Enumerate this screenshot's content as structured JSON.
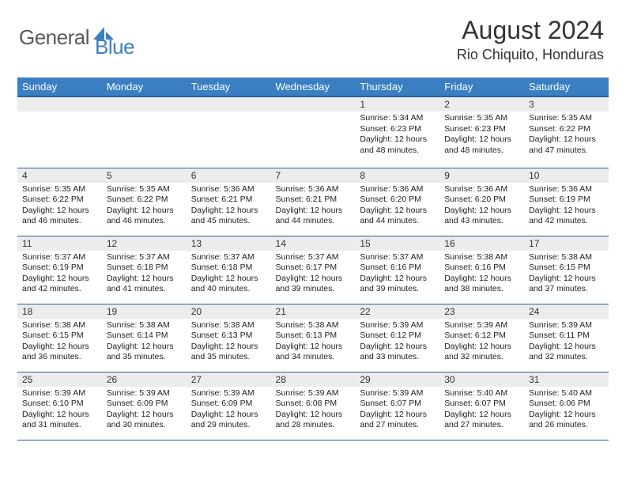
{
  "brand": {
    "general": "General",
    "blue": "Blue"
  },
  "title": "August 2024",
  "location": "Rio Chiquito, Honduras",
  "headers": [
    "Sunday",
    "Monday",
    "Tuesday",
    "Wednesday",
    "Thursday",
    "Friday",
    "Saturday"
  ],
  "days": {
    "1": {
      "sunrise": "5:34 AM",
      "sunset": "6:23 PM",
      "daylight": "12 hours and 48 minutes."
    },
    "2": {
      "sunrise": "5:35 AM",
      "sunset": "6:23 PM",
      "daylight": "12 hours and 48 minutes."
    },
    "3": {
      "sunrise": "5:35 AM",
      "sunset": "6:22 PM",
      "daylight": "12 hours and 47 minutes."
    },
    "4": {
      "sunrise": "5:35 AM",
      "sunset": "6:22 PM",
      "daylight": "12 hours and 46 minutes."
    },
    "5": {
      "sunrise": "5:35 AM",
      "sunset": "6:22 PM",
      "daylight": "12 hours and 46 minutes."
    },
    "6": {
      "sunrise": "5:36 AM",
      "sunset": "6:21 PM",
      "daylight": "12 hours and 45 minutes."
    },
    "7": {
      "sunrise": "5:36 AM",
      "sunset": "6:21 PM",
      "daylight": "12 hours and 44 minutes."
    },
    "8": {
      "sunrise": "5:36 AM",
      "sunset": "6:20 PM",
      "daylight": "12 hours and 44 minutes."
    },
    "9": {
      "sunrise": "5:36 AM",
      "sunset": "6:20 PM",
      "daylight": "12 hours and 43 minutes."
    },
    "10": {
      "sunrise": "5:36 AM",
      "sunset": "6:19 PM",
      "daylight": "12 hours and 42 minutes."
    },
    "11": {
      "sunrise": "5:37 AM",
      "sunset": "6:19 PM",
      "daylight": "12 hours and 42 minutes."
    },
    "12": {
      "sunrise": "5:37 AM",
      "sunset": "6:18 PM",
      "daylight": "12 hours and 41 minutes."
    },
    "13": {
      "sunrise": "5:37 AM",
      "sunset": "6:18 PM",
      "daylight": "12 hours and 40 minutes."
    },
    "14": {
      "sunrise": "5:37 AM",
      "sunset": "6:17 PM",
      "daylight": "12 hours and 39 minutes."
    },
    "15": {
      "sunrise": "5:37 AM",
      "sunset": "6:16 PM",
      "daylight": "12 hours and 39 minutes."
    },
    "16": {
      "sunrise": "5:38 AM",
      "sunset": "6:16 PM",
      "daylight": "12 hours and 38 minutes."
    },
    "17": {
      "sunrise": "5:38 AM",
      "sunset": "6:15 PM",
      "daylight": "12 hours and 37 minutes."
    },
    "18": {
      "sunrise": "5:38 AM",
      "sunset": "6:15 PM",
      "daylight": "12 hours and 36 minutes."
    },
    "19": {
      "sunrise": "5:38 AM",
      "sunset": "6:14 PM",
      "daylight": "12 hours and 35 minutes."
    },
    "20": {
      "sunrise": "5:38 AM",
      "sunset": "6:13 PM",
      "daylight": "12 hours and 35 minutes."
    },
    "21": {
      "sunrise": "5:38 AM",
      "sunset": "6:13 PM",
      "daylight": "12 hours and 34 minutes."
    },
    "22": {
      "sunrise": "5:39 AM",
      "sunset": "6:12 PM",
      "daylight": "12 hours and 33 minutes."
    },
    "23": {
      "sunrise": "5:39 AM",
      "sunset": "6:12 PM",
      "daylight": "12 hours and 32 minutes."
    },
    "24": {
      "sunrise": "5:39 AM",
      "sunset": "6:11 PM",
      "daylight": "12 hours and 32 minutes."
    },
    "25": {
      "sunrise": "5:39 AM",
      "sunset": "6:10 PM",
      "daylight": "12 hours and 31 minutes."
    },
    "26": {
      "sunrise": "5:39 AM",
      "sunset": "6:09 PM",
      "daylight": "12 hours and 30 minutes."
    },
    "27": {
      "sunrise": "5:39 AM",
      "sunset": "6:09 PM",
      "daylight": "12 hours and 29 minutes."
    },
    "28": {
      "sunrise": "5:39 AM",
      "sunset": "6:08 PM",
      "daylight": "12 hours and 28 minutes."
    },
    "29": {
      "sunrise": "5:39 AM",
      "sunset": "6:07 PM",
      "daylight": "12 hours and 27 minutes."
    },
    "30": {
      "sunrise": "5:40 AM",
      "sunset": "6:07 PM",
      "daylight": "12 hours and 27 minutes."
    },
    "31": {
      "sunrise": "5:40 AM",
      "sunset": "6:06 PM",
      "daylight": "12 hours and 26 minutes."
    }
  },
  "grid": [
    [
      null,
      null,
      null,
      null,
      "1",
      "2",
      "3"
    ],
    [
      "4",
      "5",
      "6",
      "7",
      "8",
      "9",
      "10"
    ],
    [
      "11",
      "12",
      "13",
      "14",
      "15",
      "16",
      "17"
    ],
    [
      "18",
      "19",
      "20",
      "21",
      "22",
      "23",
      "24"
    ],
    [
      "25",
      "26",
      "27",
      "28",
      "29",
      "30",
      "31"
    ]
  ],
  "labels": {
    "sunrise": "Sunrise: ",
    "sunset": "Sunset: ",
    "daylight": "Daylight: "
  },
  "colors": {
    "header_bg": "#3a7fc4",
    "header_text": "#ffffff",
    "row_divider": "#2b5f95",
    "daynum_bg": "#ececec",
    "text": "#222222",
    "brand_gray": "#5a5a5a",
    "brand_blue": "#3a7fc4"
  }
}
